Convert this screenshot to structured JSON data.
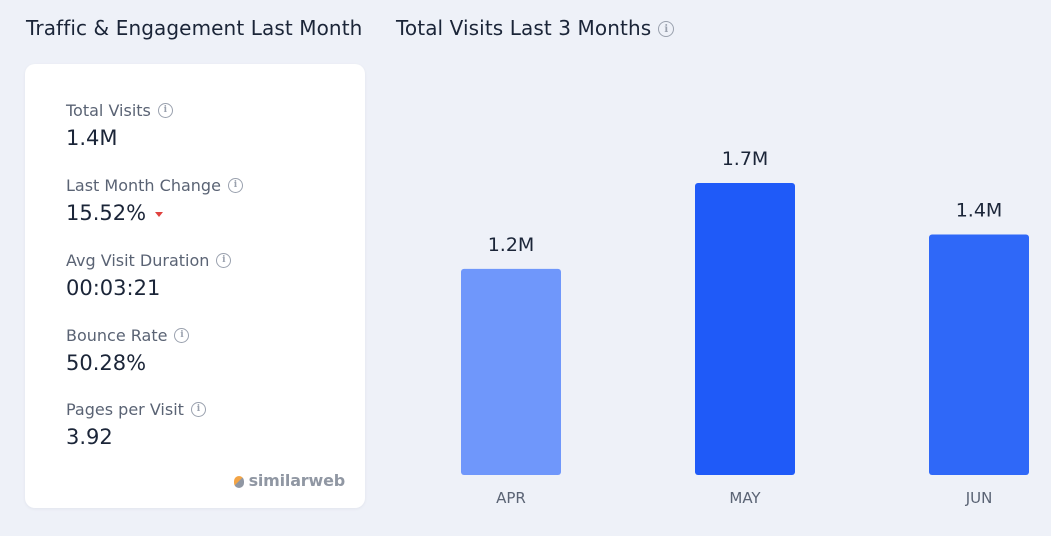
{
  "header": {
    "left_title": "Traffic & Engagement Last Month",
    "right_title": "Total Visits Last 3 Months",
    "info_glyph": "i"
  },
  "metrics": [
    {
      "label": "Total Visits",
      "value": "1.4M"
    },
    {
      "label": "Last Month Change",
      "value": "15.52%",
      "trend": "down"
    },
    {
      "label": "Avg Visit Duration",
      "value": "00:03:21"
    },
    {
      "label": "Bounce Rate",
      "value": "50.28%"
    },
    {
      "label": "Pages per Visit",
      "value": "3.92"
    }
  ],
  "brand": {
    "name": "similarweb"
  },
  "chart_data": {
    "type": "bar",
    "title": "Total Visits Last 3 Months",
    "categories": [
      "APR",
      "MAY",
      "JUN"
    ],
    "values": [
      1.2,
      1.7,
      1.4
    ],
    "value_labels": [
      "1.2M",
      "1.7M",
      "1.4M"
    ],
    "unit": "M",
    "ylim": [
      0,
      1.7
    ],
    "grid": false,
    "legend": "none",
    "colors": [
      "#6f97fb",
      "#1f5af8",
      "#2f68f8"
    ]
  }
}
